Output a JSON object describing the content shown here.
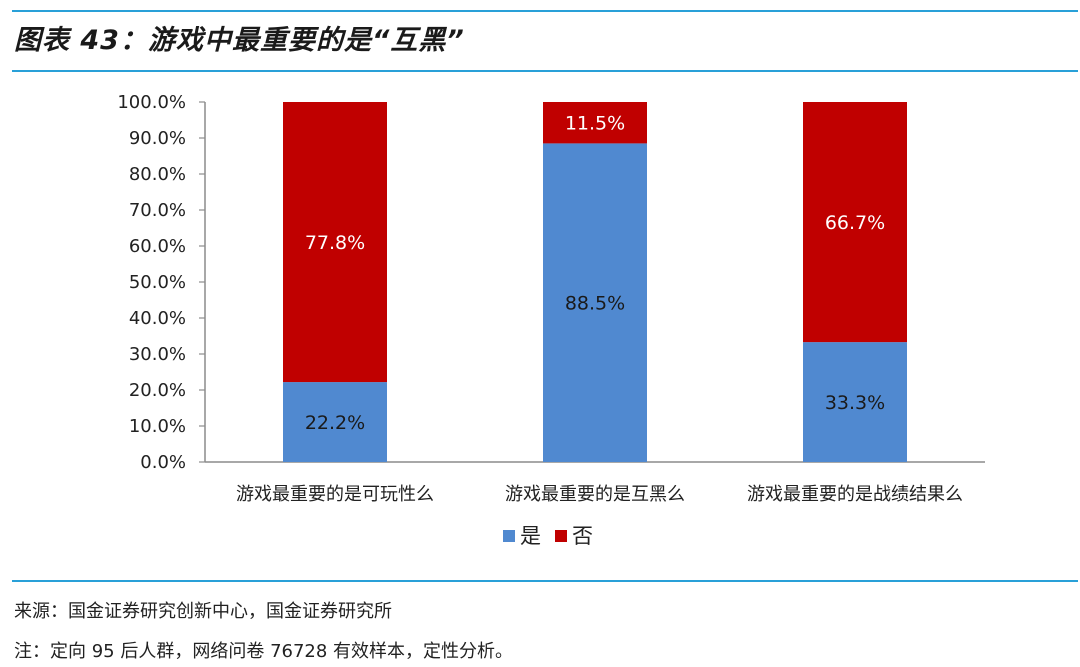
{
  "header": {
    "title": "图表 43：游戏中最重要的是“互黑”"
  },
  "chart_data": {
    "type": "bar",
    "stacked": true,
    "categories": [
      "游戏最重要的是可玩性么",
      "游戏最重要的是互黑么",
      "游戏最重要的是战绩结果么"
    ],
    "series": [
      {
        "name": "是",
        "color": "#5089d0",
        "values": [
          22.2,
          88.5,
          33.3
        ],
        "labels": [
          "22.2%",
          "88.5%",
          "33.3%"
        ]
      },
      {
        "name": "否",
        "color": "#c00000",
        "values": [
          77.8,
          11.5,
          66.7
        ],
        "labels": [
          "77.8%",
          "11.5%",
          "66.7%"
        ]
      }
    ],
    "yticks": [
      "0.0%",
      "10.0%",
      "20.0%",
      "30.0%",
      "40.0%",
      "50.0%",
      "60.0%",
      "70.0%",
      "80.0%",
      "90.0%",
      "100.0%"
    ],
    "ylim": [
      0,
      100
    ],
    "grid": false,
    "legend_position": "bottom"
  },
  "footer": {
    "source": "来源：国金证券研究创新中心，国金证券研究所",
    "note": "注：定向 95 后人群，网络问卷 76728 有效样本，定性分析。"
  }
}
